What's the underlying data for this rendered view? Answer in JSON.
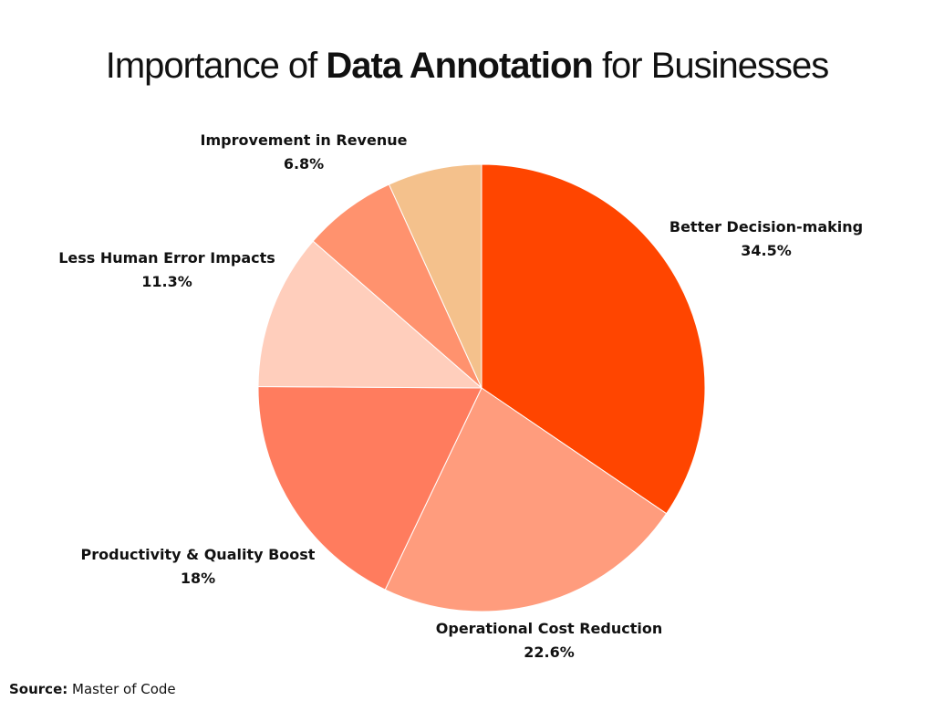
{
  "title": {
    "prefix": "Importance of",
    "emphasis": "Data Annotation",
    "suffix": "for Businesses"
  },
  "source": {
    "label": "Source:",
    "value": "Master of Code"
  },
  "chart_data": {
    "type": "pie",
    "title": "Importance of Data Annotation for Businesses",
    "start": "12 o'clock, clockwise",
    "slices": [
      {
        "label": "Better Decision-making",
        "value": 34.5,
        "display": "34.5%",
        "color": "#ff4500"
      },
      {
        "label": "Operational Cost Reduction",
        "value": 22.6,
        "display": "22.6%",
        "color": "#ff9c7d"
      },
      {
        "label": "Productivity & Quality Boost",
        "value": 18,
        "display": "18%",
        "color": "#ff7c5e"
      },
      {
        "label": "Less Human Error Impacts",
        "value": 11.3,
        "display": "11.3%",
        "color": "#ffcebc"
      },
      {
        "label": "Improvement in Revenue",
        "value": 6.8,
        "display": "6.8%",
        "color": "#ff926e"
      },
      {
        "label": "",
        "value": 6.8,
        "display": "",
        "color": "#f4c18c"
      }
    ]
  }
}
